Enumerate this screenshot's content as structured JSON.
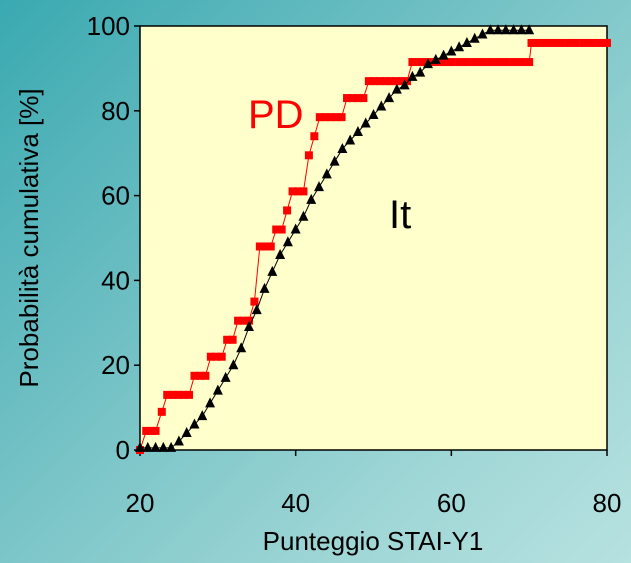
{
  "chart_data": {
    "type": "line",
    "title": "",
    "xlabel": "Punteggio STAI-Y1",
    "ylabel": "Probabilità cumulativa [%]",
    "xlim": [
      20,
      80
    ],
    "ylim": [
      0,
      100
    ],
    "x_ticks": [
      "20",
      "40",
      "60",
      "80"
    ],
    "y_ticks": [
      "0",
      "20",
      "40",
      "60",
      "80",
      "100"
    ],
    "grid": false,
    "annotations": [
      {
        "text": "PD",
        "color": "#ff0000"
      },
      {
        "text": "It",
        "color": "#000000"
      }
    ],
    "series": [
      {
        "color": "#ff0000",
        "marker": "square",
        "points": [
          [
            20,
            0
          ],
          [
            20.8,
            4.5
          ],
          [
            21.4,
            4.5
          ],
          [
            22,
            4.5
          ],
          [
            22.8,
            9
          ],
          [
            23.5,
            13
          ],
          [
            24.2,
            13
          ],
          [
            24.9,
            13
          ],
          [
            25.6,
            13
          ],
          [
            26.3,
            13
          ],
          [
            27,
            17.5
          ],
          [
            27.7,
            17.5
          ],
          [
            28.4,
            17.5
          ],
          [
            29.1,
            22
          ],
          [
            29.8,
            22
          ],
          [
            30.5,
            22
          ],
          [
            31.2,
            26
          ],
          [
            31.9,
            26
          ],
          [
            32.6,
            30.5
          ],
          [
            33.3,
            30.5
          ],
          [
            34,
            30.5
          ],
          [
            34.7,
            35
          ],
          [
            35.4,
            48
          ],
          [
            36.1,
            48
          ],
          [
            36.8,
            48
          ],
          [
            37.5,
            52
          ],
          [
            38.2,
            52
          ],
          [
            38.9,
            56.5
          ],
          [
            39.6,
            61
          ],
          [
            40.3,
            61
          ],
          [
            41,
            61
          ],
          [
            41.7,
            69.5
          ],
          [
            42.4,
            74
          ],
          [
            43.1,
            78.5
          ],
          [
            43.8,
            78.5
          ],
          [
            44.5,
            78.5
          ],
          [
            45.2,
            78.5
          ],
          [
            45.9,
            78.5
          ],
          [
            46.6,
            83
          ],
          [
            47.3,
            83
          ],
          [
            48,
            83
          ],
          [
            48.7,
            83
          ],
          [
            49.4,
            87
          ],
          [
            50.1,
            87
          ],
          [
            50.8,
            87
          ],
          [
            51.5,
            87
          ],
          [
            52.2,
            87
          ],
          [
            52.9,
            87
          ],
          [
            53.6,
            87
          ],
          [
            54.3,
            87
          ],
          [
            55,
            91.5
          ],
          [
            56,
            91.5
          ],
          [
            57,
            91.5
          ],
          [
            58,
            91.5
          ],
          [
            59,
            91.5
          ],
          [
            60,
            91.5
          ],
          [
            61,
            91.5
          ],
          [
            62,
            91.5
          ],
          [
            63,
            91.5
          ],
          [
            64,
            91.5
          ],
          [
            65,
            91.5
          ],
          [
            66,
            91.5
          ],
          [
            67,
            91.5
          ],
          [
            68,
            91.5
          ],
          [
            69,
            91.5
          ],
          [
            70,
            91.5
          ],
          [
            70.3,
            96
          ],
          [
            71,
            96
          ],
          [
            72,
            96
          ],
          [
            73,
            96
          ],
          [
            74,
            96
          ],
          [
            75,
            96
          ],
          [
            76,
            96
          ],
          [
            77,
            96
          ],
          [
            78,
            96
          ],
          [
            79,
            96
          ],
          [
            80,
            96
          ]
        ]
      },
      {
        "color": "#000000",
        "marker": "triangle",
        "points": [
          [
            20,
            0.5
          ],
          [
            21,
            0.5
          ],
          [
            22,
            0.5
          ],
          [
            23,
            0.5
          ],
          [
            24,
            0.5
          ],
          [
            25,
            2
          ],
          [
            26,
            4
          ],
          [
            27,
            6
          ],
          [
            28,
            8
          ],
          [
            29,
            11
          ],
          [
            30,
            14
          ],
          [
            31,
            17
          ],
          [
            32,
            20
          ],
          [
            33,
            24
          ],
          [
            34,
            29
          ],
          [
            35,
            33
          ],
          [
            36,
            38
          ],
          [
            37,
            42
          ],
          [
            38,
            46
          ],
          [
            39,
            49
          ],
          [
            40,
            52
          ],
          [
            41,
            55
          ],
          [
            42,
            59
          ],
          [
            43,
            62
          ],
          [
            44,
            65
          ],
          [
            45,
            68
          ],
          [
            46,
            71
          ],
          [
            47,
            73
          ],
          [
            48,
            75
          ],
          [
            49,
            77
          ],
          [
            50,
            79
          ],
          [
            51,
            81
          ],
          [
            52,
            83
          ],
          [
            53,
            85
          ],
          [
            54,
            86
          ],
          [
            55,
            88
          ],
          [
            56,
            89
          ],
          [
            57,
            91
          ],
          [
            58,
            92
          ],
          [
            59,
            93
          ],
          [
            60,
            94
          ],
          [
            61,
            95
          ],
          [
            62,
            96
          ],
          [
            63,
            97
          ],
          [
            64,
            98
          ],
          [
            65,
            99
          ],
          [
            66,
            99
          ],
          [
            67,
            99
          ],
          [
            68,
            99
          ],
          [
            69,
            99
          ],
          [
            70,
            99
          ]
        ]
      }
    ]
  }
}
